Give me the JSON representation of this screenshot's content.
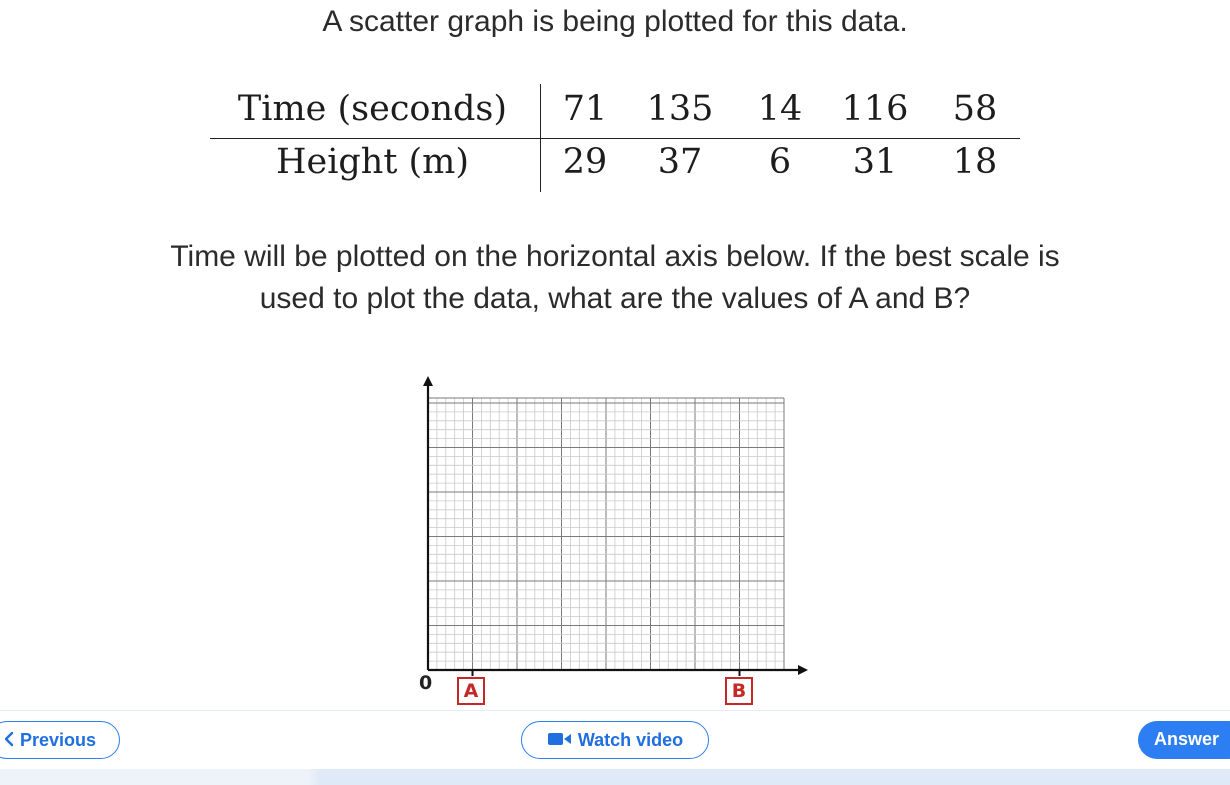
{
  "heading": "A scatter graph is being plotted for this data.",
  "table": {
    "rows": [
      {
        "label": "Time (seconds)",
        "values": [
          "71",
          "135",
          "14",
          "116",
          "58"
        ]
      },
      {
        "label": "Height (m)",
        "values": [
          "29",
          "37",
          "6",
          "31",
          "18"
        ]
      }
    ]
  },
  "question": {
    "line1": "Time will be plotted on the horizontal axis below. If the best scale is",
    "line2": "used to plot the data, what are the values of A and B?"
  },
  "graph": {
    "origin_label": "0",
    "box_a": "A",
    "box_b": "B",
    "accent_color": "#c62828"
  },
  "nav": {
    "previous_label": "Previous",
    "watch_video_label": "Watch video",
    "answer_label": "Answer",
    "brand_color": "#2d7ef3"
  }
}
